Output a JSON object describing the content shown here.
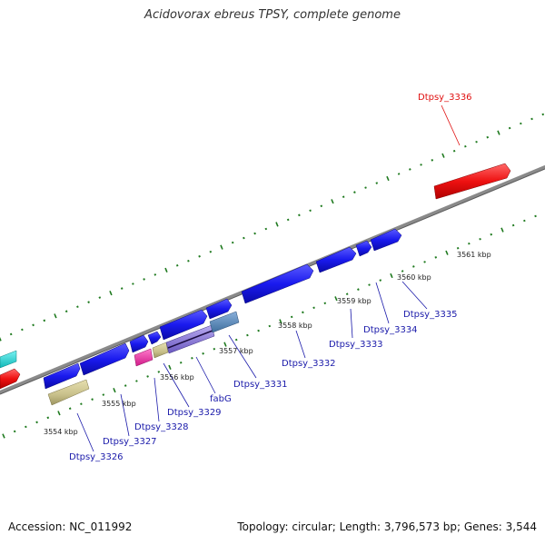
{
  "header": {
    "title": "Acidovorax ebreus TPSY, complete genome"
  },
  "footer": {
    "accession": "Accession: NC_011992",
    "topology": "Topology: circular; Length: 3,796,573 bp; Genes: 3,544"
  },
  "map": {
    "ticks": [
      "3554 kbp",
      "3555 kbp",
      "3556 kbp",
      "3557 kbp",
      "3558 kbp",
      "3559 kbp",
      "3560 kbp",
      "3561 kbp"
    ],
    "genes": [
      "Dtpsy_3326",
      "Dtpsy_3327",
      "Dtpsy_3328",
      "Dtpsy_3329",
      "fabG",
      "Dtpsy_3331",
      "Dtpsy_3332",
      "Dtpsy_3333",
      "Dtpsy_3334",
      "Dtpsy_3335",
      "Dtpsy_3336"
    ],
    "colors": {
      "backbone": "#888888",
      "tick_marks": "#1f7a1f",
      "gene_blue": "#1a1aee",
      "gene_red": "#ee1111",
      "gene_khaki": "#c8c08a",
      "gene_pink": "#ee2aa0",
      "gene_cyan": "#22dddd",
      "gene_steel": "#5f8fc0",
      "gene_purple": "#8a78d6",
      "label_blue": "#1a1aaa",
      "label_red": "#e01010"
    }
  }
}
